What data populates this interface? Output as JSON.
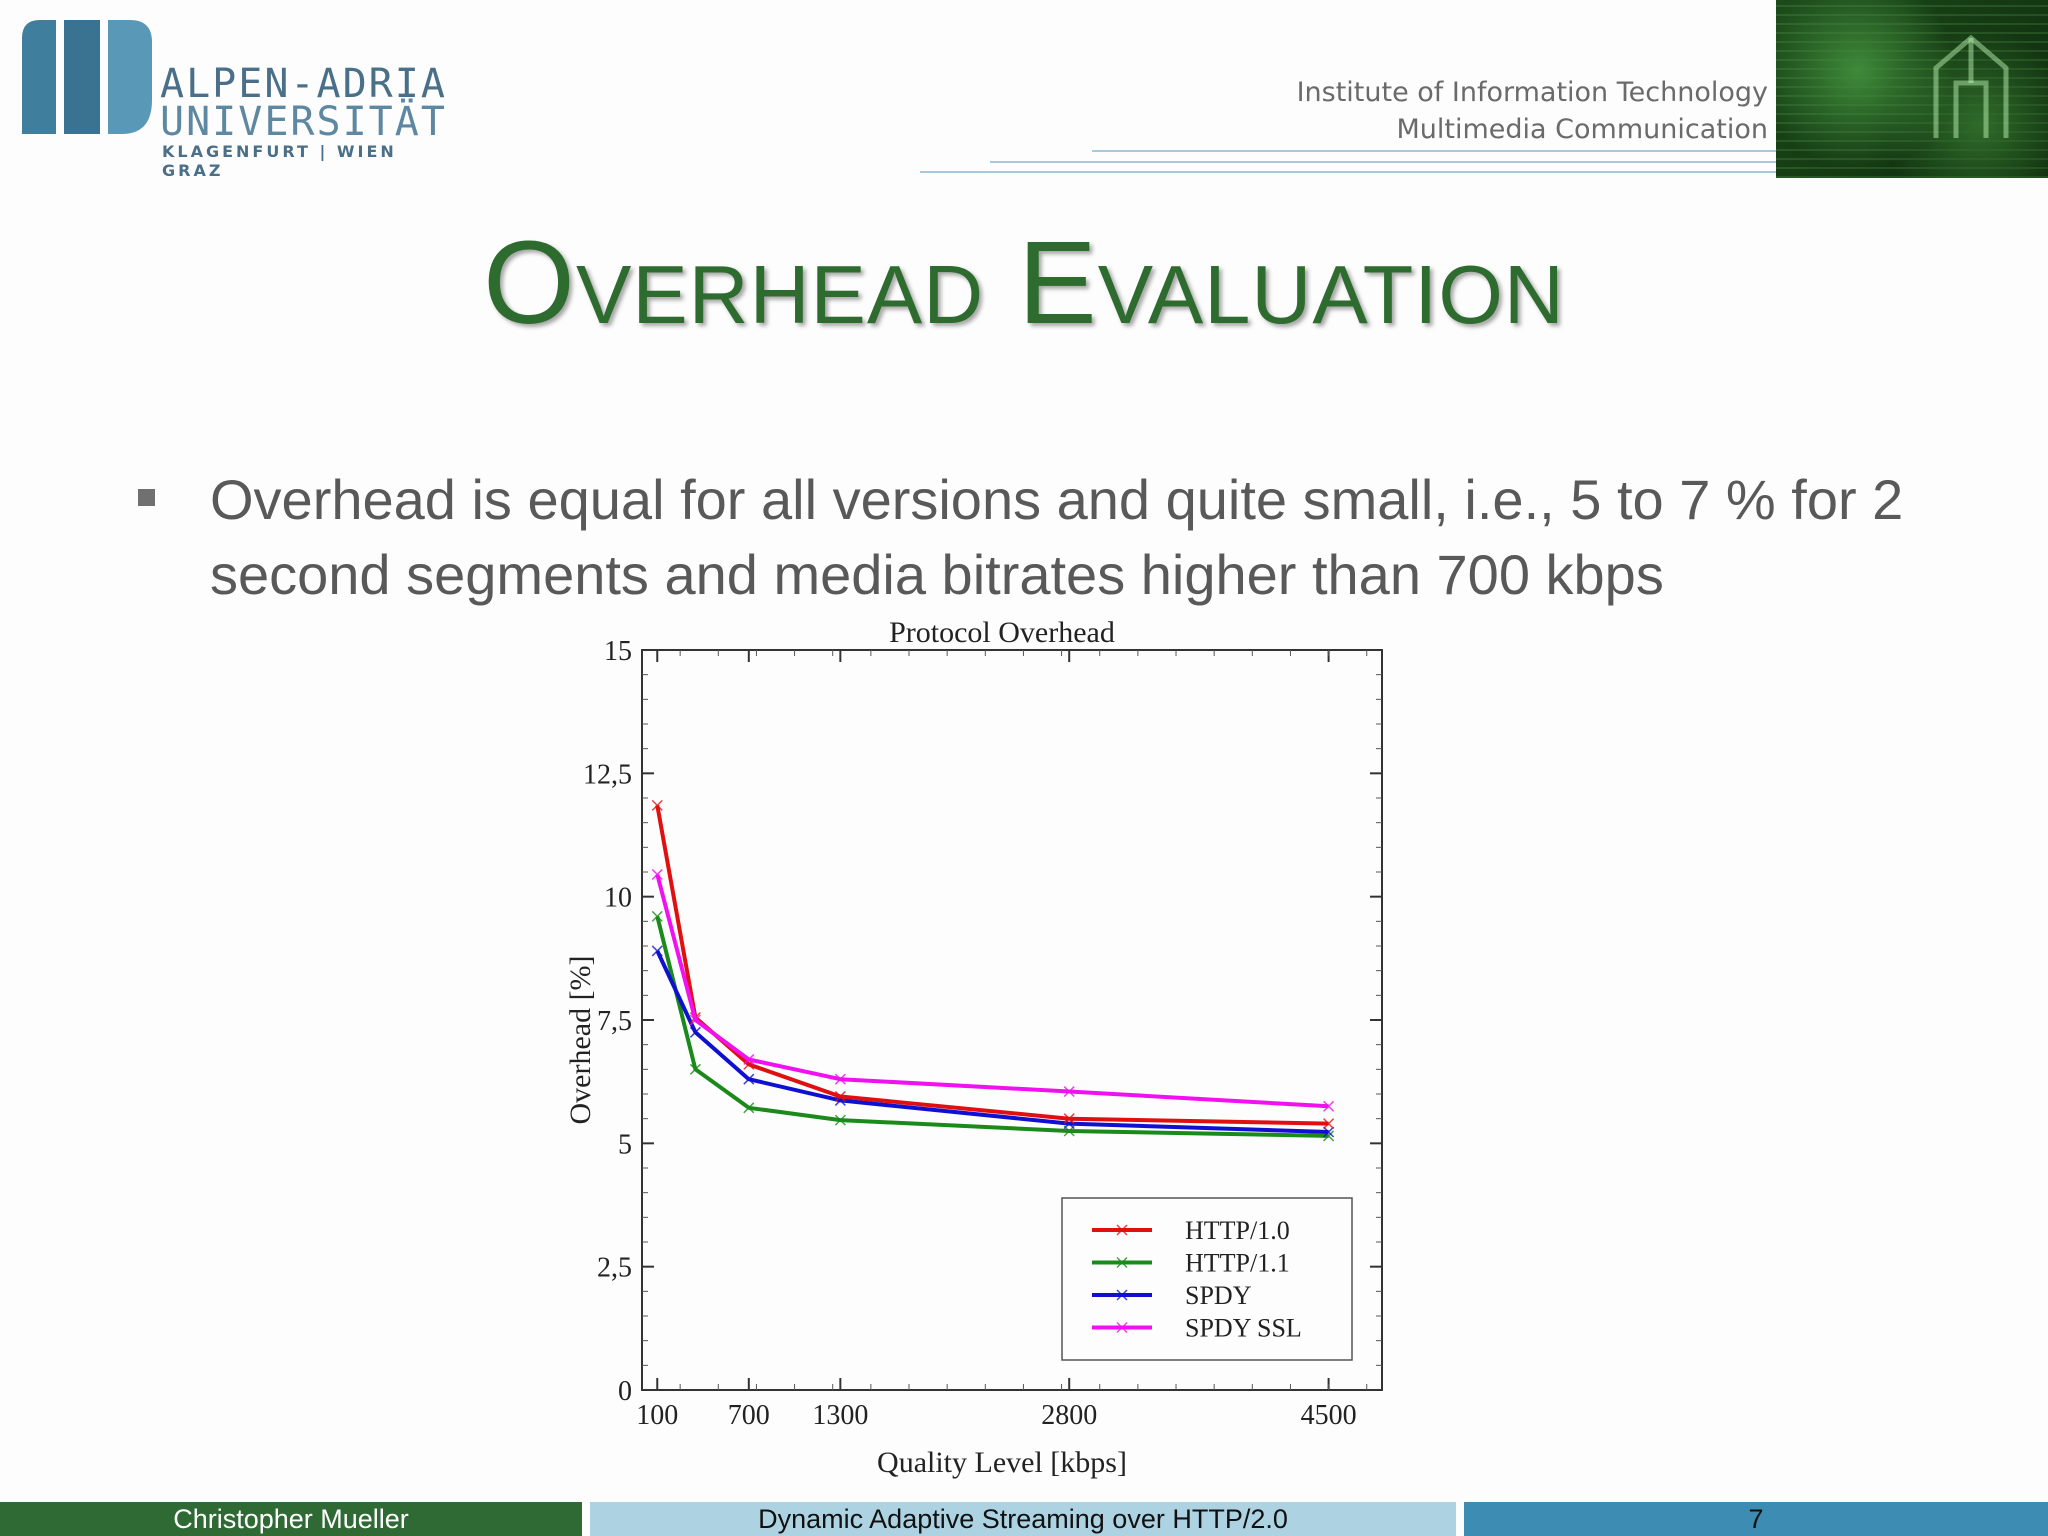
{
  "header": {
    "logo": {
      "line1": "ALPEN-ADRIA",
      "line2": "UNIVERSITÄT",
      "line3": "KLAGENFURT | WIEN GRAZ"
    },
    "institute_line1": "Institute of Information Technology",
    "institute_line2": "Multimedia Communication"
  },
  "slide": {
    "title": "Overhead Evaluation",
    "bullet": "Overhead is equal for all versions and quite small, i.e., 5 to 7 % for 2 second segments and media bitrates higher than 700 kbps"
  },
  "chart_data": {
    "type": "line",
    "title": "Protocol Overhead",
    "xlabel": "Quality Level [kbps]",
    "ylabel": "Overhead [%]",
    "xlim": [
      0,
      4850
    ],
    "ylim": [
      0,
      15
    ],
    "x_ticks": [
      "100",
      "700",
      "1300",
      "2800",
      "4500"
    ],
    "x_tick_values": [
      100,
      700,
      1300,
      2800,
      4500
    ],
    "y_ticks": [
      "0",
      "2,5",
      "5",
      "7,5",
      "10",
      "12,5",
      "15"
    ],
    "y_tick_values": [
      0,
      2.5,
      5,
      7.5,
      10,
      12.5,
      15
    ],
    "x": [
      100,
      350,
      700,
      1300,
      2800,
      4500
    ],
    "series": [
      {
        "name": "HTTP/1.0",
        "color": "#e01010",
        "values": [
          11.85,
          7.55,
          6.6,
          5.95,
          5.5,
          5.4
        ]
      },
      {
        "name": "HTTP/1.1",
        "color": "#1a8a1a",
        "values": [
          9.6,
          6.5,
          5.72,
          5.47,
          5.25,
          5.15
        ]
      },
      {
        "name": "SPDY",
        "color": "#1010d0",
        "values": [
          8.9,
          7.25,
          6.3,
          5.87,
          5.4,
          5.23
        ]
      },
      {
        "name": "SPDY SSL",
        "color": "#f010f0",
        "values": [
          10.45,
          7.5,
          6.7,
          6.3,
          6.05,
          5.75
        ]
      }
    ],
    "legend_position": "bottom-right",
    "grid": false
  },
  "footer": {
    "author": "Christopher Mueller",
    "talk_title": "Dynamic Adaptive Streaming over HTTP/2.0",
    "page_number": "7"
  },
  "colors": {
    "title_green": "#2e6b2e",
    "footer_green": "#2f6a35",
    "footer_light_blue": "#add3e3",
    "footer_blue": "#3c8cb4"
  }
}
